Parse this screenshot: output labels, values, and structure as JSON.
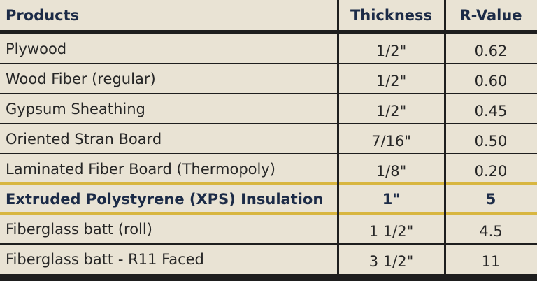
{
  "table": {
    "headers": [
      "Products",
      "Thickness",
      "R-Value"
    ],
    "rows": [
      [
        "Plywood",
        "1/2\"",
        "0.62"
      ],
      [
        "Wood Fiber (regular)",
        "1/2\"",
        "0.60"
      ],
      [
        "Gypsum Sheathing",
        "1/2\"",
        "0.45"
      ],
      [
        "Oriented Stran Board",
        "7/16\"",
        "0.50"
      ],
      [
        "Laminated Fiber Board (Thermopoly)",
        "1/8\"",
        "0.20"
      ],
      [
        "Extruded Polystyrene (XPS) Insulation",
        "1\"",
        "5"
      ],
      [
        "Fiberglass batt (roll)",
        "1 1/2\"",
        "4.5"
      ],
      [
        "Fiberglass batt - R11 Faced",
        "3 1/2\"",
        "11"
      ]
    ]
  }
}
